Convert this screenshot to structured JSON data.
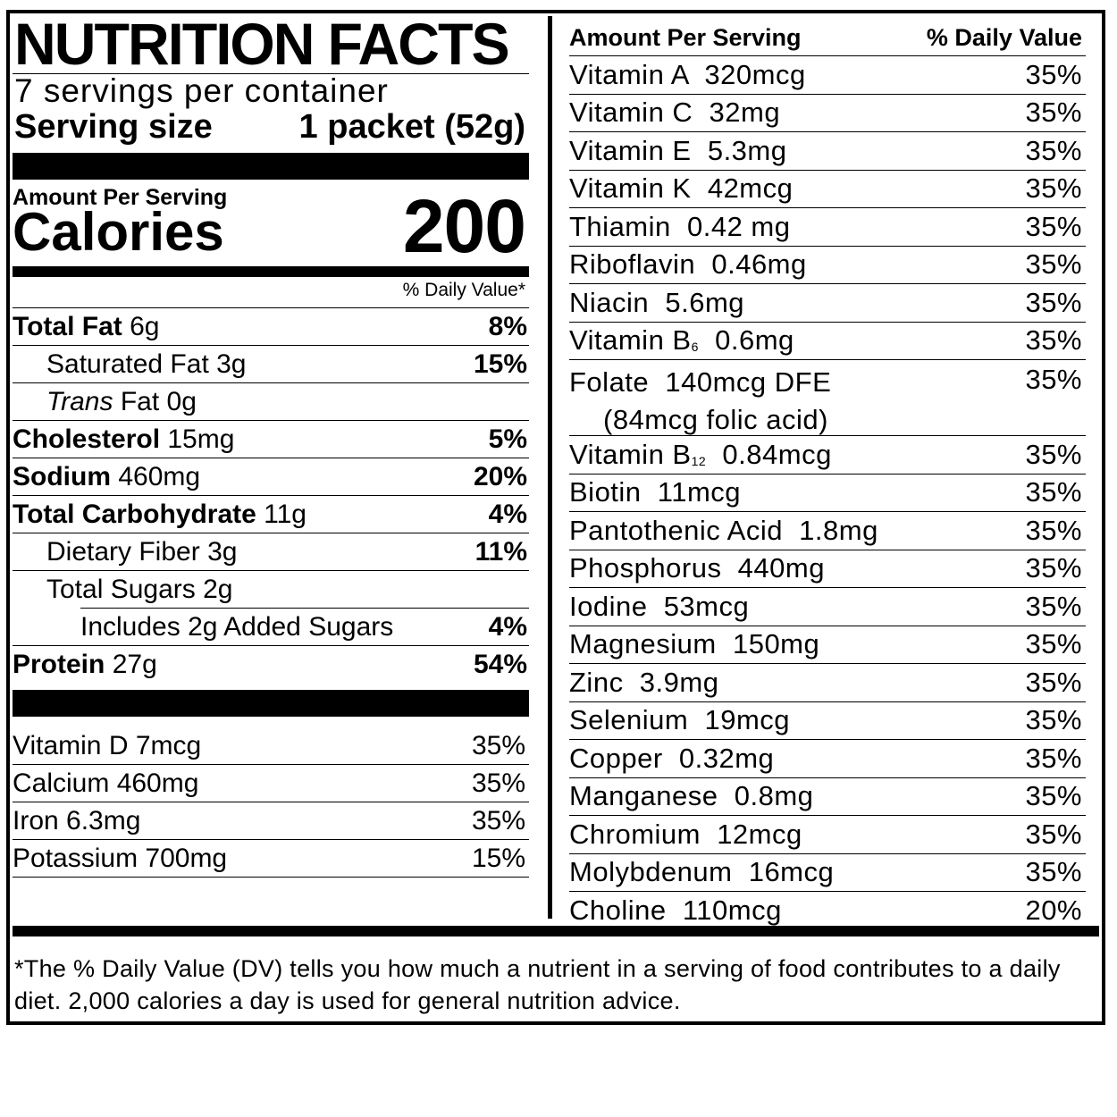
{
  "header": {
    "title": "NUTRITION FACTS",
    "servings": "7 servings per container",
    "serving_size_label": "Serving size",
    "serving_size_value": "1 packet (52g)",
    "amount_per_serving": "Amount Per Serving",
    "calories_label": "Calories",
    "calories_value": "200",
    "dv_header": "% Daily Value*"
  },
  "macros": [
    {
      "name": "Total Fat",
      "amount": "6g",
      "dv": "8%"
    },
    {
      "name": "Saturated Fat",
      "amount": "3g",
      "dv": "15%"
    },
    {
      "name": "Trans",
      "name_suffix": "Fat",
      "amount": "0g",
      "dv": ""
    },
    {
      "name": "Cholesterol",
      "amount": "15mg",
      "dv": "5%"
    },
    {
      "name": "Sodium",
      "amount": "460mg",
      "dv": "20%"
    },
    {
      "name": "Total Carbohydrate",
      "amount": "11g",
      "dv": "4%"
    },
    {
      "name": "Dietary Fiber",
      "amount": "3g",
      "dv": "11%"
    },
    {
      "name": "Total Sugars",
      "amount": "2g",
      "dv": ""
    },
    {
      "name": "Includes 2g Added Sugars",
      "amount": "",
      "dv": "4%"
    },
    {
      "name": "Protein",
      "amount": "27g",
      "dv": "54%"
    }
  ],
  "minerals_left": [
    {
      "text": "Vitamin D 7mcg",
      "dv": "35%"
    },
    {
      "text": "Calcium 460mg",
      "dv": "35%"
    },
    {
      "text": "Iron 6.3mg",
      "dv": "35%"
    },
    {
      "text": "Potassium 700mg",
      "dv": "15%"
    }
  ],
  "right": {
    "head_left": "Amount Per Serving",
    "head_right": "% Daily Value",
    "rows": [
      {
        "text": "Vitamin A  320mcg",
        "dv": "35%"
      },
      {
        "text": "Vitamin C  32mg",
        "dv": "35%"
      },
      {
        "text": "Vitamin E  5.3mg",
        "dv": "35%"
      },
      {
        "text": "Vitamin K  42mcg",
        "dv": "35%"
      },
      {
        "text": "Thiamin  0.42 mg",
        "dv": "35%"
      },
      {
        "text": "Riboflavin  0.46mg",
        "dv": "35%"
      },
      {
        "text": "Niacin  5.6mg",
        "dv": "35%"
      },
      {
        "text_pre": "Vitamin B",
        "text_sub": "6",
        "text_post": "  0.6mg",
        "dv": "35%"
      },
      {
        "text": "Folate  140mcg DFE",
        "text2": "(84mcg folic acid)",
        "dv": "35%"
      },
      {
        "text_pre": "Vitamin B",
        "text_sub": "12",
        "text_post": "  0.84mcg",
        "dv": "35%"
      },
      {
        "text": "Biotin  11mcg",
        "dv": "35%"
      },
      {
        "text": "Pantothenic Acid  1.8mg",
        "dv": "35%"
      },
      {
        "text": "Phosphorus  440mg",
        "dv": "35%"
      },
      {
        "text": "Iodine  53mcg",
        "dv": "35%"
      },
      {
        "text": "Magnesium  150mg",
        "dv": "35%"
      },
      {
        "text": "Zinc  3.9mg",
        "dv": "35%"
      },
      {
        "text": "Selenium  19mcg",
        "dv": "35%"
      },
      {
        "text": "Copper  0.32mg",
        "dv": "35%"
      },
      {
        "text": "Manganese  0.8mg",
        "dv": "35%"
      },
      {
        "text": "Chromium  12mcg",
        "dv": "35%"
      },
      {
        "text": "Molybdenum  16mcg",
        "dv": "35%"
      },
      {
        "text": "Choline  110mcg",
        "dv": "20%"
      }
    ]
  },
  "footnote": "*The % Daily Value (DV) tells you how much a nutrient in a serving of food contributes to a daily diet. 2,000 calories a day is used for general nutrition advice."
}
